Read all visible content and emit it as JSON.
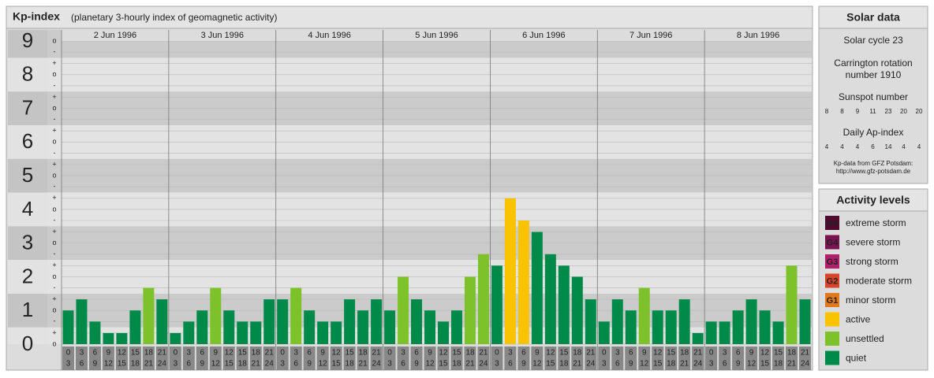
{
  "chart_data": {
    "type": "bar",
    "title": "Kp-index",
    "subtitle": "(planetary 3-hourly index of geomagnetic activity)",
    "days": [
      "2 Jun 1996",
      "3 Jun 1996",
      "4 Jun 1996",
      "5 Jun 1996",
      "6 Jun 1996",
      "7 Jun 1996",
      "8 Jun 1996"
    ],
    "hour_start": [
      0,
      3,
      6,
      9,
      12,
      15,
      18,
      21
    ],
    "hour_end": [
      3,
      6,
      9,
      12,
      15,
      18,
      21,
      24
    ],
    "values": [
      1,
      1.33,
      0.67,
      0.33,
      0.33,
      1,
      1.67,
      1.33,
      0.33,
      0.67,
      1,
      1.67,
      1,
      0.67,
      0.67,
      1.33,
      1.33,
      1.67,
      1,
      0.67,
      0.67,
      1.33,
      1,
      1.33,
      1,
      2,
      1.33,
      1,
      0.67,
      1,
      2,
      2.67,
      2.33,
      4.33,
      3.67,
      3.33,
      2.67,
      2.33,
      2,
      1.33,
      0.67,
      1.33,
      1,
      1.67,
      1,
      1,
      1.33,
      0.33,
      0.67,
      0.67,
      1,
      1.33,
      1,
      0.67,
      2.33,
      1.33
    ],
    "colors": [
      "#008a4a",
      "#008a4a",
      "#008a4a",
      "#008a4a",
      "#008a4a",
      "#008a4a",
      "#7dc22b",
      "#008a4a",
      "#008a4a",
      "#008a4a",
      "#008a4a",
      "#7dc22b",
      "#008a4a",
      "#008a4a",
      "#008a4a",
      "#008a4a",
      "#008a4a",
      "#7dc22b",
      "#008a4a",
      "#008a4a",
      "#008a4a",
      "#008a4a",
      "#008a4a",
      "#008a4a",
      "#008a4a",
      "#7dc22b",
      "#008a4a",
      "#008a4a",
      "#008a4a",
      "#008a4a",
      "#7dc22b",
      "#7dc22b",
      "#008a4a",
      "#f9c300",
      "#f9c300",
      "#008a4a",
      "#008a4a",
      "#008a4a",
      "#008a4a",
      "#008a4a",
      "#008a4a",
      "#008a4a",
      "#008a4a",
      "#7dc22b",
      "#008a4a",
      "#008a4a",
      "#008a4a",
      "#008a4a",
      "#008a4a",
      "#008a4a",
      "#008a4a",
      "#008a4a",
      "#008a4a",
      "#008a4a",
      "#7dc22b",
      "#008a4a"
    ],
    "ylim": [
      0,
      9
    ],
    "yticks": [
      0,
      1,
      2,
      3,
      4,
      5,
      6,
      7,
      8,
      9
    ],
    "yticks_minor": [
      {
        "value": 0,
        "label": "o"
      },
      {
        "value": 0.33,
        "label": "+"
      },
      {
        "value": 0.67,
        "label": "-"
      },
      {
        "value": 1,
        "label": "o"
      },
      {
        "value": 1.33,
        "label": "+"
      },
      {
        "value": 1.67,
        "label": "-"
      },
      {
        "value": 2,
        "label": "o"
      },
      {
        "value": 2.33,
        "label": "+"
      },
      {
        "value": 2.67,
        "label": "-"
      },
      {
        "value": 3,
        "label": "o"
      },
      {
        "value": 3.33,
        "label": "+"
      },
      {
        "value": 3.67,
        "label": "-"
      },
      {
        "value": 4,
        "label": "o"
      },
      {
        "value": 4.33,
        "label": "+"
      },
      {
        "value": 4.67,
        "label": "-"
      },
      {
        "value": 5,
        "label": "o"
      },
      {
        "value": 5.33,
        "label": "+"
      },
      {
        "value": 5.67,
        "label": "-"
      },
      {
        "value": 6,
        "label": "o"
      },
      {
        "value": 6.33,
        "label": "+"
      },
      {
        "value": 6.67,
        "label": "-"
      },
      {
        "value": 7,
        "label": "o"
      },
      {
        "value": 7.33,
        "label": "+"
      },
      {
        "value": 7.67,
        "label": "-"
      },
      {
        "value": 8,
        "label": "o"
      },
      {
        "value": 8.33,
        "label": "+"
      },
      {
        "value": 8.67,
        "label": "-"
      },
      {
        "value": 9,
        "label": "o"
      }
    ]
  },
  "solar_data": {
    "title": "Solar data",
    "cycle": "Solar cycle 23",
    "rotation": [
      "Carrington rotation",
      "number 1910"
    ],
    "sunspot_label": "Sunspot number",
    "sunspot": [
      8,
      8,
      9,
      11,
      23,
      20,
      20
    ],
    "ap_label": "Daily Ap-index",
    "ap": [
      4,
      4,
      4,
      6,
      14,
      4,
      4
    ],
    "source": [
      "Kp-data from GFZ Potsdam:",
      "http://www.gfz-potsdam.de"
    ]
  },
  "activity_levels": {
    "title": "Activity levels",
    "items": [
      {
        "badge": "G5",
        "label": "extreme storm",
        "color": "#4f0a2e"
      },
      {
        "badge": "G4",
        "label": "severe storm",
        "color": "#7a1450"
      },
      {
        "badge": "G3",
        "label": "strong storm",
        "color": "#b0206a"
      },
      {
        "badge": "G2",
        "label": "moderate storm",
        "color": "#d9452a"
      },
      {
        "badge": "G1",
        "label": "minor storm",
        "color": "#e07a1c"
      },
      {
        "label": "active",
        "color": "#f9c300"
      },
      {
        "label": "unsettled",
        "color": "#7dc22b"
      },
      {
        "label": "quiet",
        "color": "#008a4a"
      }
    ]
  }
}
